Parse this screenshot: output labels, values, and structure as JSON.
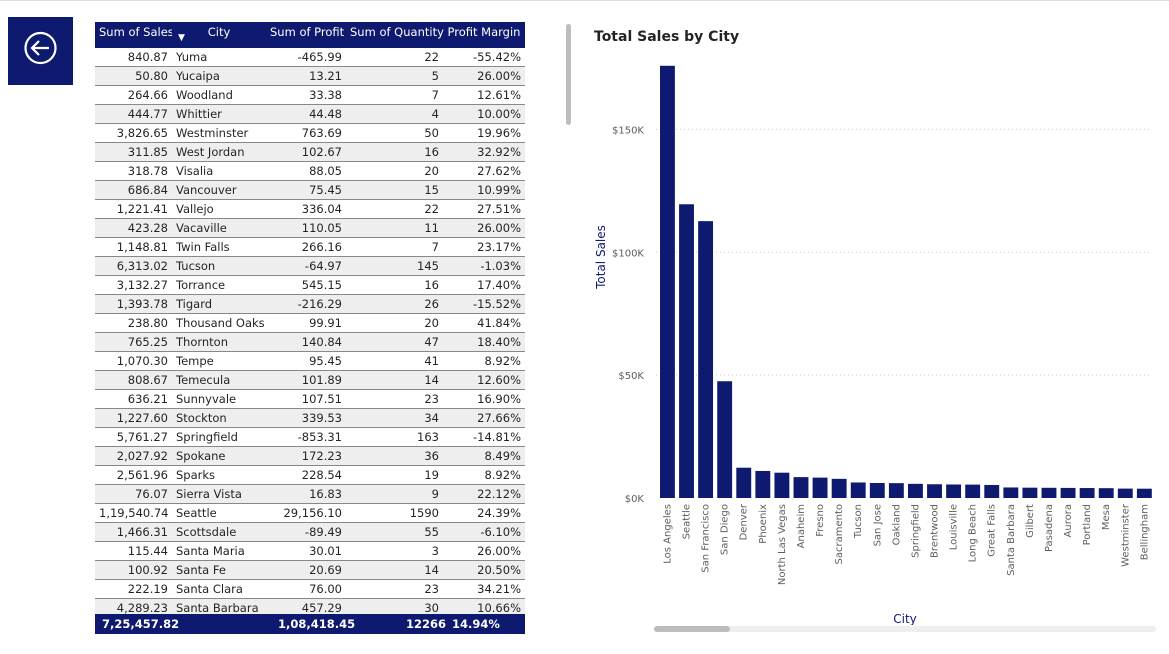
{
  "table": {
    "headers": {
      "sales": "Sum of Sales",
      "city": "City",
      "profit": "Sum of Profit",
      "quantity": "Sum of Quantity",
      "margin": "Profit Margin",
      "sort_icon": "caret-down"
    },
    "rows": [
      {
        "sales": "840.87",
        "city": "Yuma",
        "profit": "-465.99",
        "quantity": "22",
        "margin": "-55.42%"
      },
      {
        "sales": "50.80",
        "city": "Yucaipa",
        "profit": "13.21",
        "quantity": "5",
        "margin": "26.00%"
      },
      {
        "sales": "264.66",
        "city": "Woodland",
        "profit": "33.38",
        "quantity": "7",
        "margin": "12.61%"
      },
      {
        "sales": "444.77",
        "city": "Whittier",
        "profit": "44.48",
        "quantity": "4",
        "margin": "10.00%"
      },
      {
        "sales": "3,826.65",
        "city": "Westminster",
        "profit": "763.69",
        "quantity": "50",
        "margin": "19.96%"
      },
      {
        "sales": "311.85",
        "city": "West Jordan",
        "profit": "102.67",
        "quantity": "16",
        "margin": "32.92%"
      },
      {
        "sales": "318.78",
        "city": "Visalia",
        "profit": "88.05",
        "quantity": "20",
        "margin": "27.62%"
      },
      {
        "sales": "686.84",
        "city": "Vancouver",
        "profit": "75.45",
        "quantity": "15",
        "margin": "10.99%"
      },
      {
        "sales": "1,221.41",
        "city": "Vallejo",
        "profit": "336.04",
        "quantity": "22",
        "margin": "27.51%"
      },
      {
        "sales": "423.28",
        "city": "Vacaville",
        "profit": "110.05",
        "quantity": "11",
        "margin": "26.00%"
      },
      {
        "sales": "1,148.81",
        "city": "Twin Falls",
        "profit": "266.16",
        "quantity": "7",
        "margin": "23.17%"
      },
      {
        "sales": "6,313.02",
        "city": "Tucson",
        "profit": "-64.97",
        "quantity": "145",
        "margin": "-1.03%"
      },
      {
        "sales": "3,132.27",
        "city": "Torrance",
        "profit": "545.15",
        "quantity": "16",
        "margin": "17.40%"
      },
      {
        "sales": "1,393.78",
        "city": "Tigard",
        "profit": "-216.29",
        "quantity": "26",
        "margin": "-15.52%"
      },
      {
        "sales": "238.80",
        "city": "Thousand Oaks",
        "profit": "99.91",
        "quantity": "20",
        "margin": "41.84%"
      },
      {
        "sales": "765.25",
        "city": "Thornton",
        "profit": "140.84",
        "quantity": "47",
        "margin": "18.40%"
      },
      {
        "sales": "1,070.30",
        "city": "Tempe",
        "profit": "95.45",
        "quantity": "41",
        "margin": "8.92%"
      },
      {
        "sales": "808.67",
        "city": "Temecula",
        "profit": "101.89",
        "quantity": "14",
        "margin": "12.60%"
      },
      {
        "sales": "636.21",
        "city": "Sunnyvale",
        "profit": "107.51",
        "quantity": "23",
        "margin": "16.90%"
      },
      {
        "sales": "1,227.60",
        "city": "Stockton",
        "profit": "339.53",
        "quantity": "34",
        "margin": "27.66%"
      },
      {
        "sales": "5,761.27",
        "city": "Springfield",
        "profit": "-853.31",
        "quantity": "163",
        "margin": "-14.81%"
      },
      {
        "sales": "2,027.92",
        "city": "Spokane",
        "profit": "172.23",
        "quantity": "36",
        "margin": "8.49%"
      },
      {
        "sales": "2,561.96",
        "city": "Sparks",
        "profit": "228.54",
        "quantity": "19",
        "margin": "8.92%"
      },
      {
        "sales": "76.07",
        "city": "Sierra Vista",
        "profit": "16.83",
        "quantity": "9",
        "margin": "22.12%"
      },
      {
        "sales": "1,19,540.74",
        "city": "Seattle",
        "profit": "29,156.10",
        "quantity": "1590",
        "margin": "24.39%"
      },
      {
        "sales": "1,466.31",
        "city": "Scottsdale",
        "profit": "-89.49",
        "quantity": "55",
        "margin": "-6.10%"
      },
      {
        "sales": "115.44",
        "city": "Santa Maria",
        "profit": "30.01",
        "quantity": "3",
        "margin": "26.00%"
      },
      {
        "sales": "100.92",
        "city": "Santa Fe",
        "profit": "20.69",
        "quantity": "14",
        "margin": "20.50%"
      },
      {
        "sales": "222.19",
        "city": "Santa Clara",
        "profit": "76.00",
        "quantity": "23",
        "margin": "34.21%"
      },
      {
        "sales": "4,289.23",
        "city": "Santa Barbara",
        "profit": "457.29",
        "quantity": "30",
        "margin": "10.66%"
      }
    ],
    "totals": {
      "sales": "7,25,457.82",
      "city": "",
      "profit": "1,08,418.45",
      "quantity": "12266",
      "margin": "14.94%"
    }
  },
  "back_button_icon": "arrow-left-circle-icon",
  "colors": {
    "accent": "#0e1a6f",
    "bar": "#0e1a6f",
    "row_alt": "#eeeeee"
  },
  "chart_data": {
    "type": "bar",
    "title": "Total Sales by City",
    "xlabel": "City",
    "ylabel": "Total Sales",
    "ylim": [
      0,
      175000
    ],
    "yticks": [
      0,
      50000,
      100000,
      150000
    ],
    "ytick_labels": [
      "$0K",
      "$50K",
      "$100K",
      "$150K"
    ],
    "gridlines": true,
    "categories": [
      "Los Angeles",
      "Seattle",
      "San Francisco",
      "San Diego",
      "Denver",
      "Phoenix",
      "North Las Vegas",
      "Anaheim",
      "Fresno",
      "Sacramento",
      "Tucson",
      "San Jose",
      "Oakland",
      "Springfield",
      "Brentwood",
      "Louisville",
      "Long Beach",
      "Great Falls",
      "Santa Barbara",
      "Gilbert",
      "Pasadena",
      "Aurora",
      "Portland",
      "Mesa",
      "Westminster",
      "Bellingham"
    ],
    "values": [
      175900,
      119541,
      112669,
      47521,
      12323,
      11001,
      10300,
      8500,
      8300,
      7800,
      6313,
      6100,
      6050,
      5761,
      5600,
      5500,
      5450,
      5300,
      4289,
      4200,
      4150,
      4100,
      4050,
      4000,
      3827,
      3790
    ]
  }
}
